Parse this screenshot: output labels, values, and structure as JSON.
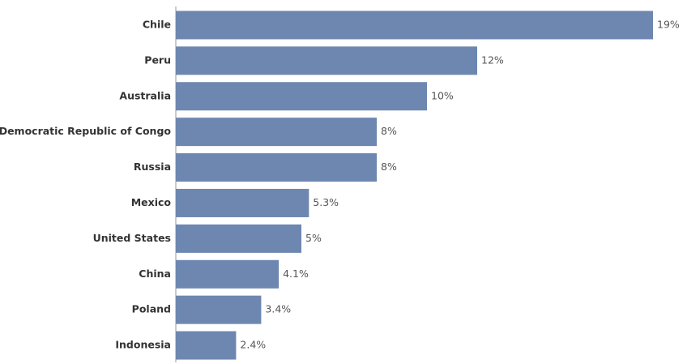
{
  "chart_data": {
    "type": "barh",
    "categories": [
      "Chile",
      "Peru",
      "Australia",
      "Democratic Republic of Congo",
      "Russia",
      "Mexico",
      "United States",
      "China",
      "Poland",
      "Indonesia"
    ],
    "values": [
      19,
      12,
      10,
      8,
      8,
      5.3,
      5,
      4.1,
      3.4,
      2.4
    ],
    "value_labels": [
      "19%",
      "12%",
      "10%",
      "8%",
      "8%",
      "5.3%",
      "5%",
      "4.1%",
      "3.4%",
      "2.4%"
    ],
    "color": "#6d87b0"
  }
}
